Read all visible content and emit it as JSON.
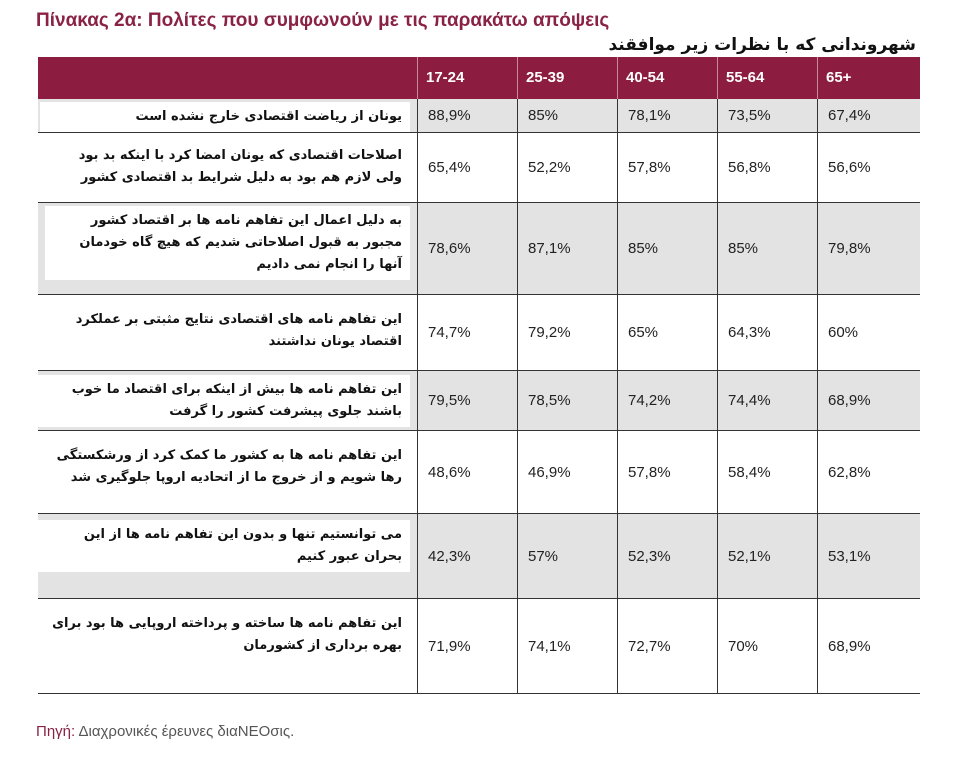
{
  "title": {
    "lead": "Πίνακας 2α:",
    "text": "Πολίτες που συμφωνούν με τις παρακάτω απόψεις"
  },
  "subtitle": "شهروندانی که با نظرات زیر موافقند",
  "colors": {
    "header_bg": "#8c1d40",
    "title": "#8a2246",
    "row_shade": "#e3e3e3"
  },
  "table": {
    "columns": [
      "17-24",
      "25-39",
      "40-54",
      "55-64",
      "65+"
    ],
    "rows": [
      {
        "label": "یونان از ریاضت اقتصادی خارج نشده است",
        "values": [
          "88,9%",
          "85%",
          "78,1%",
          "73,5%",
          "67,4%"
        ]
      },
      {
        "label": "اصلاحات اقتصادی که یونان امضا کرد با اینکه بد بود ولی لازم هم بود به دلیل شرایط بد اقتصادی کشور",
        "values": [
          "65,4%",
          "52,2%",
          "57,8%",
          "56,8%",
          "56,6%"
        ]
      },
      {
        "label": "به دلیل اعمال این تفاهم نامه ها بر اقتصاد کشور مجبور به قبول اصلاحاتی شدیم که هیچ گاه خودمان آنها را انجام نمی دادیم",
        "values": [
          "78,6%",
          "87,1%",
          "85%",
          "85%",
          "79,8%"
        ]
      },
      {
        "label": "این تفاهم نامه های اقتصادی نتایج مثبتی بر عملکرد اقتصاد یونان نداشتند",
        "values": [
          "74,7%",
          "79,2%",
          "65%",
          "64,3%",
          "60%"
        ]
      },
      {
        "label": "این تفاهم نامه ها بیش از اینکه برای اقتصاد ما خوب باشند جلوی پیشرفت کشور را گرفت",
        "values": [
          "79,5%",
          "78,5%",
          "74,2%",
          "74,4%",
          "68,9%"
        ]
      },
      {
        "label": "این تفاهم نامه ها به کشور ما کمک کرد از ورشکستگی رها شویم و از خروج ما از اتحادیه اروپا جلوگیری شد",
        "values": [
          "48,6%",
          "46,9%",
          "57,8%",
          "58,4%",
          "62,8%"
        ]
      },
      {
        "label": "می توانستیم تنها و بدون این تفاهم نامه ها از این بحران عبور کنیم",
        "values": [
          "42,3%",
          "57%",
          "52,3%",
          "52,1%",
          "53,1%"
        ]
      },
      {
        "label": "این تفاهم نامه ها ساخته و پرداخته اروپایی ها بود برای بهره برداری از کشورمان",
        "values": [
          "71,9%",
          "74,1%",
          "72,7%",
          "70%",
          "68,9%"
        ]
      }
    ]
  },
  "source": {
    "label": "Πηγή:",
    "text": "Διαχρονικές έρευνες διαNEOσις."
  }
}
